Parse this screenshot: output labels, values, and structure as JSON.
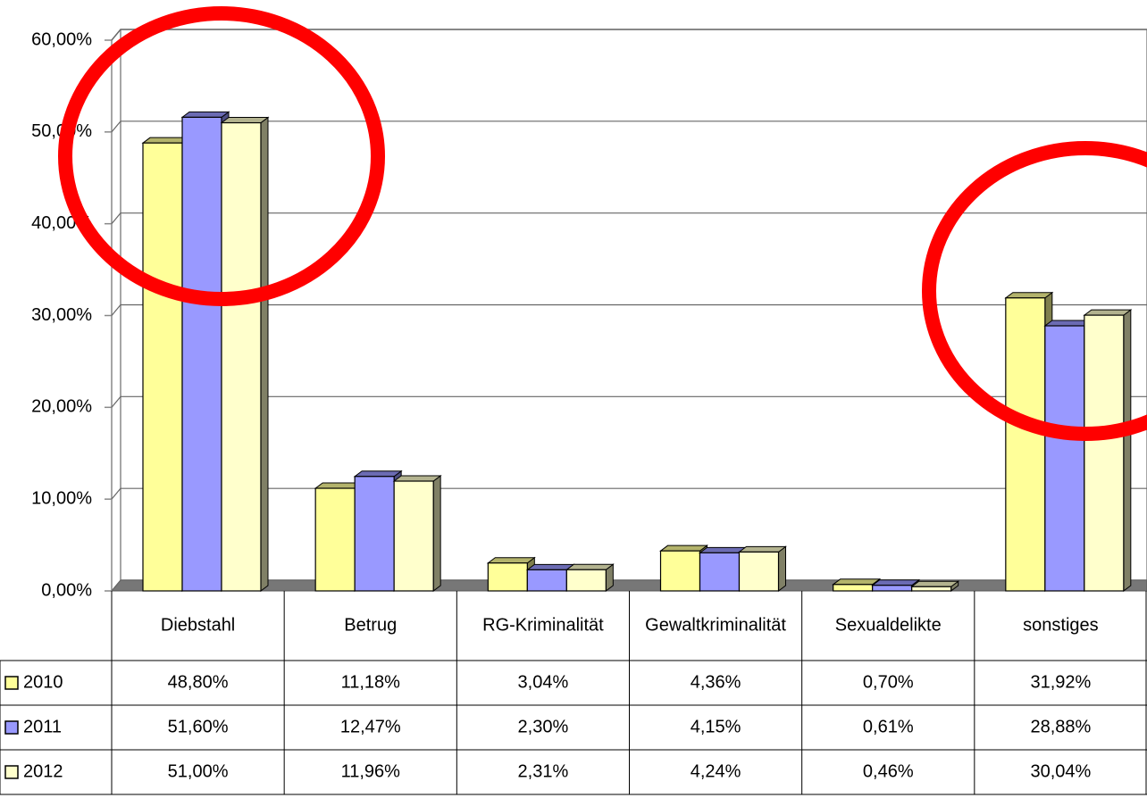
{
  "chart_data": {
    "type": "bar3d",
    "categories": [
      "Diebstahl",
      "Betrug",
      "RG-Kriminalität",
      "Gewaltkriminalität",
      "Sexualdelikte",
      "sonstiges"
    ],
    "series": [
      {
        "name": "2010",
        "color": "#ffff99",
        "values": [
          48.8,
          11.18,
          3.04,
          4.36,
          0.7,
          31.92
        ],
        "value_labels": [
          "48,80%",
          "11,18%",
          "3,04%",
          "4,36%",
          "0,70%",
          "31,92%"
        ]
      },
      {
        "name": "2011",
        "color": "#9999ff",
        "values": [
          51.6,
          12.47,
          2.3,
          4.15,
          0.61,
          28.88
        ],
        "value_labels": [
          "51,60%",
          "12,47%",
          "2,30%",
          "4,15%",
          "0,61%",
          "28,88%"
        ]
      },
      {
        "name": "2012",
        "color": "#ffffcc",
        "values": [
          51.0,
          11.96,
          2.31,
          4.24,
          0.46,
          30.04
        ],
        "value_labels": [
          "51,00%",
          "11,96%",
          "2,31%",
          "4,24%",
          "0,46%",
          "30,04%"
        ]
      }
    ],
    "ylim": [
      0,
      60
    ],
    "yticks": [
      {
        "value": 0,
        "label": "0,00%"
      },
      {
        "value": 10,
        "label": "10,00%"
      },
      {
        "value": 20,
        "label": "20,00%"
      },
      {
        "value": 30,
        "label": "30,00%"
      },
      {
        "value": 40,
        "label": "40,00%"
      },
      {
        "value": 50,
        "label": "50,00%"
      },
      {
        "value": 60,
        "label": "60,00%"
      }
    ],
    "grid": true
  }
}
